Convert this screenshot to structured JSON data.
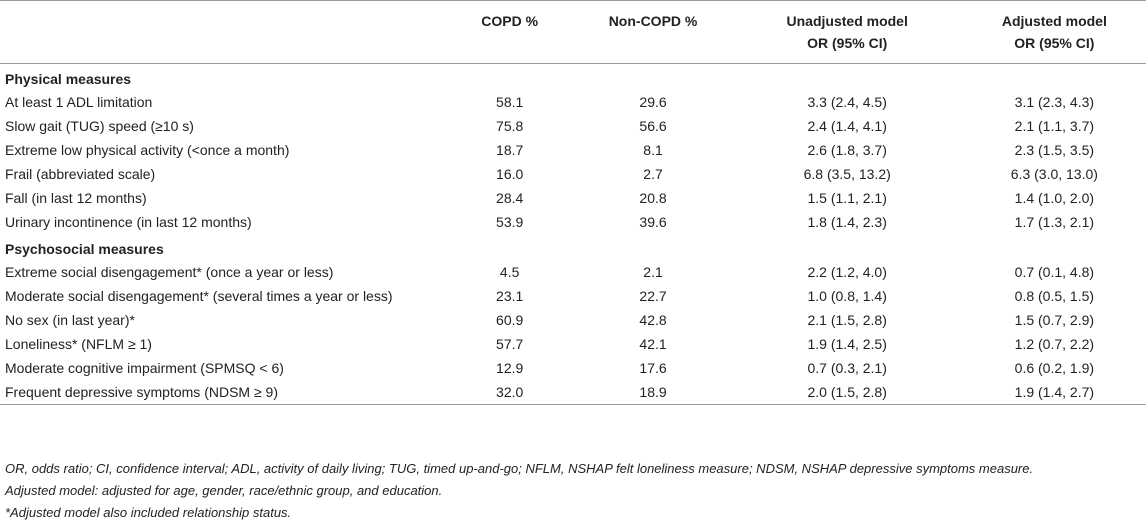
{
  "headers": [
    "",
    "COPD %",
    "Non-COPD %",
    "Unadjusted model",
    "Adjusted model"
  ],
  "subheaders": [
    "",
    "",
    "",
    "OR (95% CI)",
    "OR (95% CI)"
  ],
  "sections": [
    {
      "title": "Physical measures",
      "rows": [
        [
          "At least 1 ADL limitation",
          "58.1",
          "29.6",
          "3.3 (2.4, 4.5)",
          "3.1 (2.3, 4.3)"
        ],
        [
          "Slow gait (TUG) speed (≥10 s)",
          "75.8",
          "56.6",
          "2.4 (1.4, 4.1)",
          "2.1 (1.1, 3.7)"
        ],
        [
          "Extreme low physical activity (<once a month)",
          "18.7",
          "8.1",
          "2.6 (1.8, 3.7)",
          "2.3 (1.5, 3.5)"
        ],
        [
          "Frail (abbreviated scale)",
          "16.0",
          "2.7",
          "6.8 (3.5, 13.2)",
          "6.3 (3.0, 13.0)"
        ],
        [
          "Fall (in last 12 months)",
          "28.4",
          "20.8",
          "1.5 (1.1, 2.1)",
          "1.4 (1.0, 2.0)"
        ],
        [
          "Urinary incontinence (in last 12 months)",
          "53.9",
          "39.6",
          "1.8 (1.4, 2.3)",
          "1.7 (1.3, 2.1)"
        ]
      ]
    },
    {
      "title": "Psychosocial measures",
      "rows": [
        [
          "Extreme social disengagement* (once a year or less)",
          "4.5",
          "2.1",
          "2.2 (1.2, 4.0)",
          "0.7 (0.1, 4.8)"
        ],
        [
          "Moderate social disengagement* (several times a year or less)",
          "23.1",
          "22.7",
          "1.0 (0.8, 1.4)",
          "0.8 (0.5, 1.5)"
        ],
        [
          "No sex (in last year)*",
          "60.9",
          "42.8",
          "2.1 (1.5, 2.8)",
          "1.5 (0.7, 2.9)"
        ],
        [
          "Loneliness* (NFLM ≥ 1)",
          "57.7",
          "42.1",
          "1.9 (1.4, 2.5)",
          "1.2 (0.7, 2.2)"
        ],
        [
          "Moderate cognitive impairment (SPMSQ < 6)",
          "12.9",
          "17.6",
          "0.7 (0.3, 2.1)",
          "0.6 (0.2, 1.9)"
        ],
        [
          "Frequent depressive symptoms (NDSM ≥ 9)",
          "32.0",
          "18.9",
          "2.0 (1.5, 2.8)",
          "1.9 (1.4, 2.7)"
        ]
      ]
    }
  ],
  "footnotes": [
    "OR, odds ratio; CI, confidence interval; ADL, activity of daily living; TUG, timed up-and-go; NFLM, NSHAP felt loneliness measure; NDSM, NSHAP depressive symptoms measure.",
    "Adjusted model: adjusted for age, gender, race/ethnic group, and education.",
    "*Adjusted model also included relationship status."
  ]
}
